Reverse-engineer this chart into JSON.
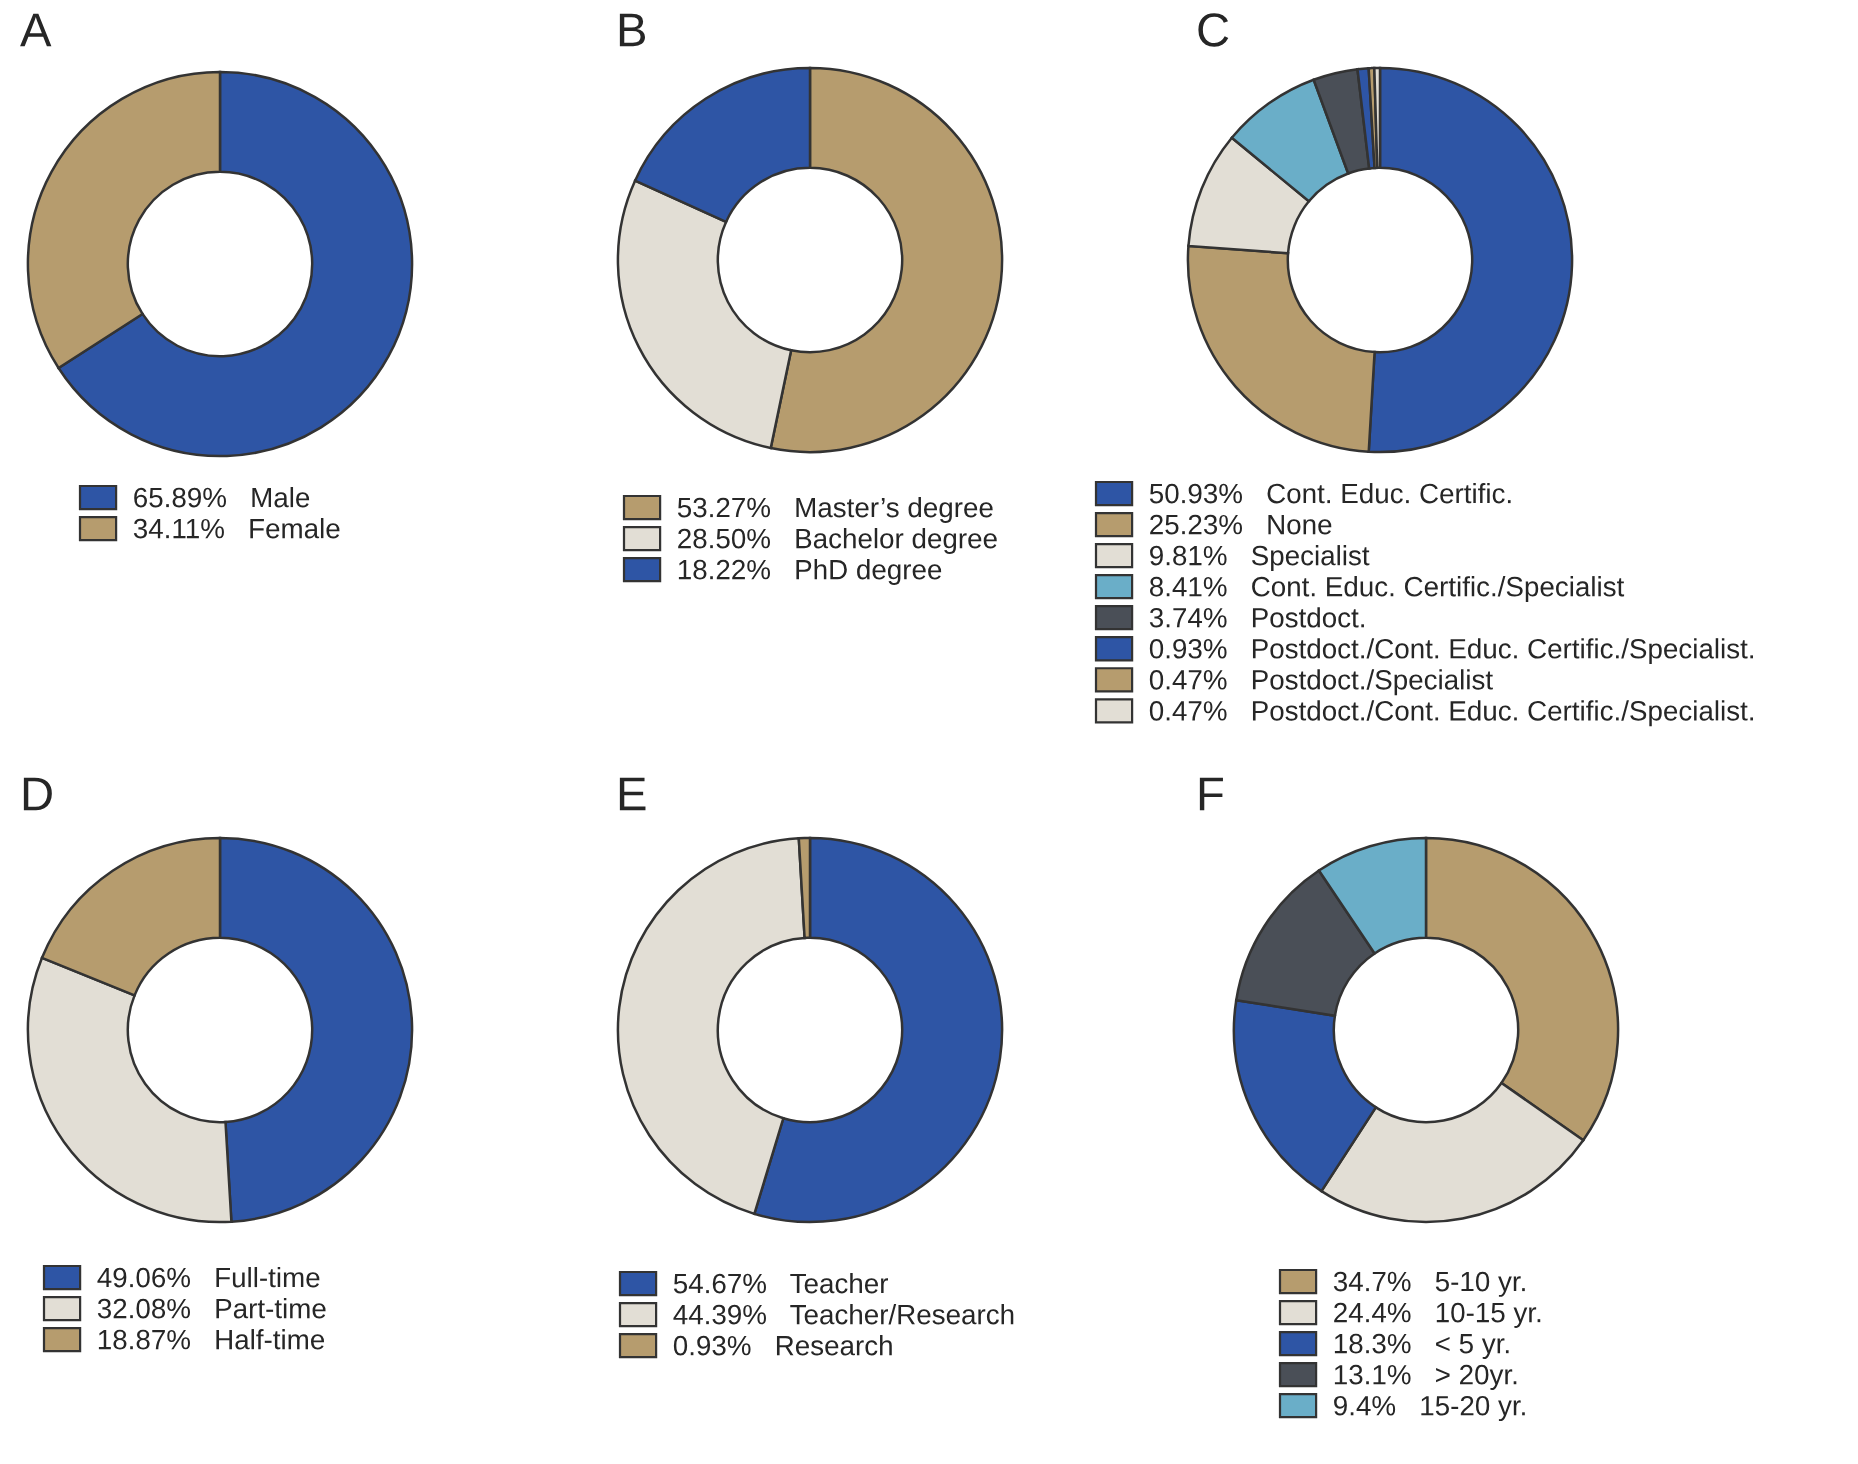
{
  "chart_data": [
    {
      "type": "donut",
      "title": "A",
      "categories": [
        "Male",
        "Female"
      ],
      "values": [
        65.89,
        34.11
      ],
      "value_labels": [
        "65.89%",
        "34.11%"
      ],
      "colors": [
        "#2e55a5",
        "#b69c6e"
      ],
      "legend": "bottom"
    },
    {
      "type": "donut",
      "title": "B",
      "categories": [
        "Master’s degree",
        "Bachelor degree",
        "PhD degree"
      ],
      "values": [
        53.27,
        28.5,
        18.22
      ],
      "value_labels": [
        "53.27%",
        "28.50%",
        "18.22%"
      ],
      "colors": [
        "#b69c6e",
        "#e2ded5",
        "#2e55a5"
      ],
      "legend": "bottom"
    },
    {
      "type": "donut",
      "title": "C",
      "categories": [
        "Cont. Educ. Certific.",
        "None",
        "Specialist",
        "Cont. Educ. Certific./Specialist",
        "Postdoct.",
        "Postdoct./Cont. Educ. Certific./Specialist.",
        "Postdoct./Specialist",
        "Postdoct./Cont. Educ. Certific./Specialist."
      ],
      "values": [
        50.93,
        25.23,
        9.81,
        8.41,
        3.74,
        0.93,
        0.47,
        0.47
      ],
      "value_labels": [
        "50.93%",
        "25.23%",
        "9.81%",
        "8.41%",
        "3.74%",
        "0.93%",
        "0.47%",
        "0.47%"
      ],
      "colors": [
        "#2e55a5",
        "#b69c6e",
        "#e2ded5",
        "#6aaec8",
        "#4a4f57",
        "#2e55a5",
        "#b69c6e",
        "#e2ded5"
      ],
      "legend": "bottom"
    },
    {
      "type": "donut",
      "title": "D",
      "categories": [
        "Full-time",
        "Part-time",
        "Half-time"
      ],
      "values": [
        49.06,
        32.08,
        18.87
      ],
      "value_labels": [
        "49.06%",
        "32.08%",
        "18.87%"
      ],
      "colors": [
        "#2e55a5",
        "#e2ded5",
        "#b69c6e"
      ],
      "legend": "bottom"
    },
    {
      "type": "donut",
      "title": "E",
      "categories": [
        "Teacher",
        "Teacher/Research",
        "Research"
      ],
      "values": [
        54.67,
        44.39,
        0.93
      ],
      "value_labels": [
        "54.67%",
        "44.39%",
        "0.93%"
      ],
      "colors": [
        "#2e55a5",
        "#e2ded5",
        "#b69c6e"
      ],
      "legend": "bottom"
    },
    {
      "type": "donut",
      "title": "F",
      "categories": [
        "5-10 yr.",
        "10-15 yr.",
        "< 5 yr.",
        "> 20yr.",
        "15-20 yr."
      ],
      "values": [
        34.7,
        24.4,
        18.3,
        13.1,
        9.4
      ],
      "value_labels": [
        "34.7%",
        "24.4%",
        "18.3%",
        "13.1%",
        "9.4%"
      ],
      "colors": [
        "#b69c6e",
        "#e2ded5",
        "#2e55a5",
        "#4a4f57",
        "#6aaec8"
      ],
      "legend": "bottom"
    }
  ]
}
